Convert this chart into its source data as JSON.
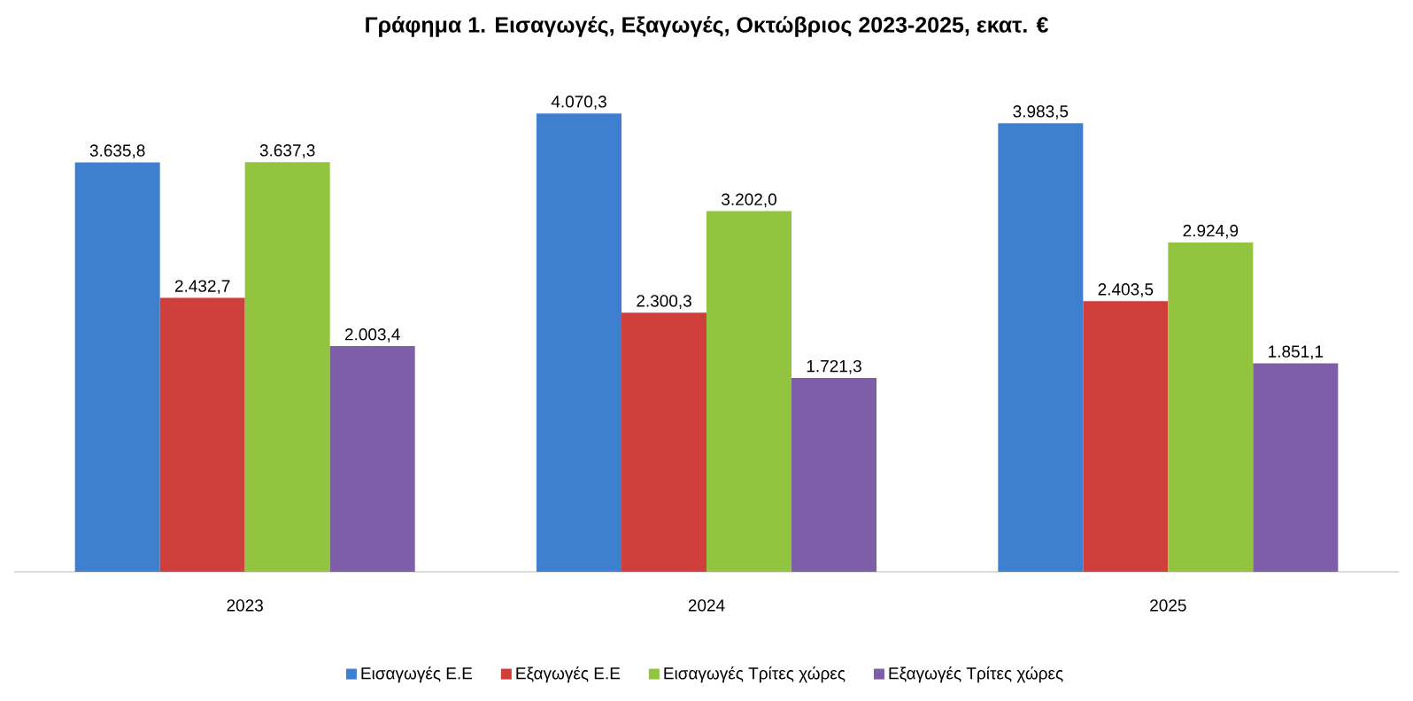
{
  "chart_data": {
    "type": "bar",
    "title": "Γράφημα 1. Εισαγωγές, Εξαγωγές, Οκτώβριος 2023-2025, εκατ. €",
    "categories": [
      "2023",
      "2024",
      "2025"
    ],
    "series": [
      {
        "name": "Εισαγωγές Ε.Ε",
        "color": "#3f7fcf",
        "values": [
          3635.8,
          4070.3,
          3983.5
        ],
        "value_labels": [
          "3.635,8",
          "4.070,3",
          "3.983,5"
        ]
      },
      {
        "name": "Εξαγωγές  Ε.Ε",
        "color": "#cf3f3b",
        "values": [
          2432.7,
          2300.3,
          2403.5
        ],
        "value_labels": [
          "2.432,7",
          "2.300,3",
          "2.403,5"
        ]
      },
      {
        "name": "Εισαγωγές Τρίτες χώρες",
        "color": "#92c43f",
        "values": [
          3637.3,
          3202.0,
          2924.9
        ],
        "value_labels": [
          "3.637,3",
          "3.202,0",
          "2.924,9"
        ]
      },
      {
        "name": "Εξαγωγές Τρίτες χώρες",
        "color": "#7e5ea9",
        "values": [
          2003.4,
          1721.3,
          1851.1
        ],
        "value_labels": [
          "2.003,4",
          "1.721,3",
          "1.851,1"
        ]
      }
    ],
    "legend": "bottom"
  }
}
